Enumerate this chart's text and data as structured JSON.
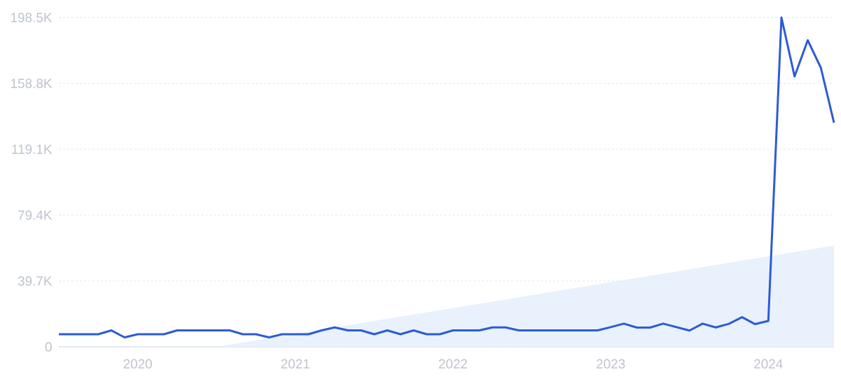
{
  "chart_data": {
    "type": "line",
    "x": [
      "2019-07",
      "2019-08",
      "2019-09",
      "2019-10",
      "2019-11",
      "2019-12",
      "2020-01",
      "2020-02",
      "2020-03",
      "2020-04",
      "2020-05",
      "2020-06",
      "2020-07",
      "2020-08",
      "2020-09",
      "2020-10",
      "2020-11",
      "2020-12",
      "2021-01",
      "2021-02",
      "2021-03",
      "2021-04",
      "2021-05",
      "2021-06",
      "2021-07",
      "2021-08",
      "2021-09",
      "2021-10",
      "2021-11",
      "2021-12",
      "2022-01",
      "2022-02",
      "2022-03",
      "2022-04",
      "2022-05",
      "2022-06",
      "2022-07",
      "2022-08",
      "2022-09",
      "2022-10",
      "2022-11",
      "2022-12",
      "2023-01",
      "2023-02",
      "2023-03",
      "2023-04",
      "2023-05",
      "2023-06",
      "2023-07",
      "2023-08",
      "2023-09",
      "2023-10",
      "2023-11",
      "2023-12",
      "2024-01",
      "2024-02",
      "2024-03",
      "2024-04",
      "2024-05",
      "2024-06"
    ],
    "series": [
      {
        "type": "area",
        "color": "#e8f1fc",
        "x": [
          "2020-07",
          "2024-06"
        ],
        "values": [
          0,
          61
        ]
      },
      {
        "color": "#2d5bd3",
        "values": [
          7.6,
          7.6,
          7.6,
          7.6,
          9.9,
          5.7,
          7.6,
          7.6,
          7.6,
          9.9,
          9.9,
          9.9,
          9.9,
          9.9,
          7.6,
          7.6,
          5.7,
          7.6,
          7.6,
          7.6,
          9.9,
          11.7,
          9.9,
          9.9,
          7.6,
          9.9,
          7.6,
          9.9,
          7.6,
          7.6,
          9.9,
          9.9,
          9.9,
          11.7,
          11.7,
          9.9,
          9.9,
          9.9,
          9.9,
          9.9,
          9.9,
          9.9,
          11.9,
          14.0,
          11.6,
          11.6,
          14.0,
          11.9,
          9.8,
          14.0,
          11.7,
          13.9,
          17.9,
          13.7,
          15.6,
          198.5,
          163,
          184.8,
          168.2,
          135.1
        ]
      }
    ],
    "xlim": [
      "2019-07",
      "2024-06"
    ],
    "ylim": [
      0,
      198.5
    ],
    "xticks": [
      "2020",
      "2021",
      "2022",
      "2023",
      "2024"
    ],
    "yticks": [
      0,
      {
        "value": 39.7,
        "label": "39.7K"
      },
      {
        "value": 79.4,
        "label": "79.4K"
      },
      {
        "value": 119.1,
        "label": "119.1K"
      },
      {
        "value": 158.8,
        "label": "158.8K"
      },
      {
        "value": 198.5,
        "label": "198.5K"
      }
    ],
    "grid": "y"
  }
}
